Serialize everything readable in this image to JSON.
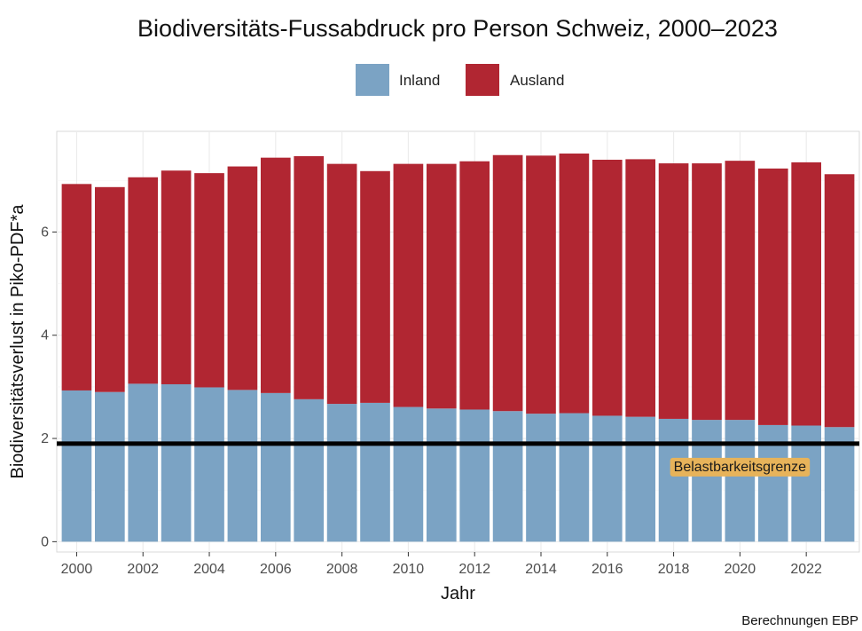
{
  "chart_data": {
    "type": "bar",
    "stacked": true,
    "title": "Biodiversitäts-Fussabdruck pro Person Schweiz, 2000–2023",
    "xlabel": "Jahr",
    "ylabel": "Biodiversitätsverlust in Piko-PDF*a",
    "caption": "Berechnungen EBP",
    "ylim": [
      -0.2,
      7.95
    ],
    "yticks": [
      0,
      2,
      4,
      6
    ],
    "grid": true,
    "legend_position": "top",
    "categories": [
      2000,
      2001,
      2002,
      2003,
      2004,
      2005,
      2006,
      2007,
      2008,
      2009,
      2010,
      2011,
      2012,
      2013,
      2014,
      2015,
      2016,
      2017,
      2018,
      2019,
      2020,
      2021,
      2022,
      2023
    ],
    "xtick_labels": [
      "2000",
      "2002",
      "2004",
      "2006",
      "2008",
      "2010",
      "2012",
      "2014",
      "2016",
      "2018",
      "2020",
      "2022"
    ],
    "series": [
      {
        "name": "Inland",
        "color": "#7ba3c4",
        "values": [
          2.93,
          2.9,
          3.06,
          3.05,
          2.99,
          2.94,
          2.88,
          2.76,
          2.67,
          2.69,
          2.61,
          2.58,
          2.56,
          2.53,
          2.48,
          2.49,
          2.44,
          2.42,
          2.38,
          2.36,
          2.36,
          2.26,
          2.25,
          2.22
        ]
      },
      {
        "name": "Ausland",
        "color": "#b12632",
        "values": [
          4.0,
          3.97,
          4.0,
          4.14,
          4.15,
          4.33,
          4.56,
          4.71,
          4.65,
          4.49,
          4.71,
          4.74,
          4.81,
          4.96,
          5.0,
          5.03,
          4.96,
          4.99,
          4.95,
          4.97,
          5.02,
          4.97,
          5.1,
          4.9
        ]
      }
    ],
    "reference_line": {
      "value": 1.9,
      "label": "Belastbarkeitsgrenze",
      "color": "#000000",
      "label_color": "#e7b35a"
    }
  }
}
